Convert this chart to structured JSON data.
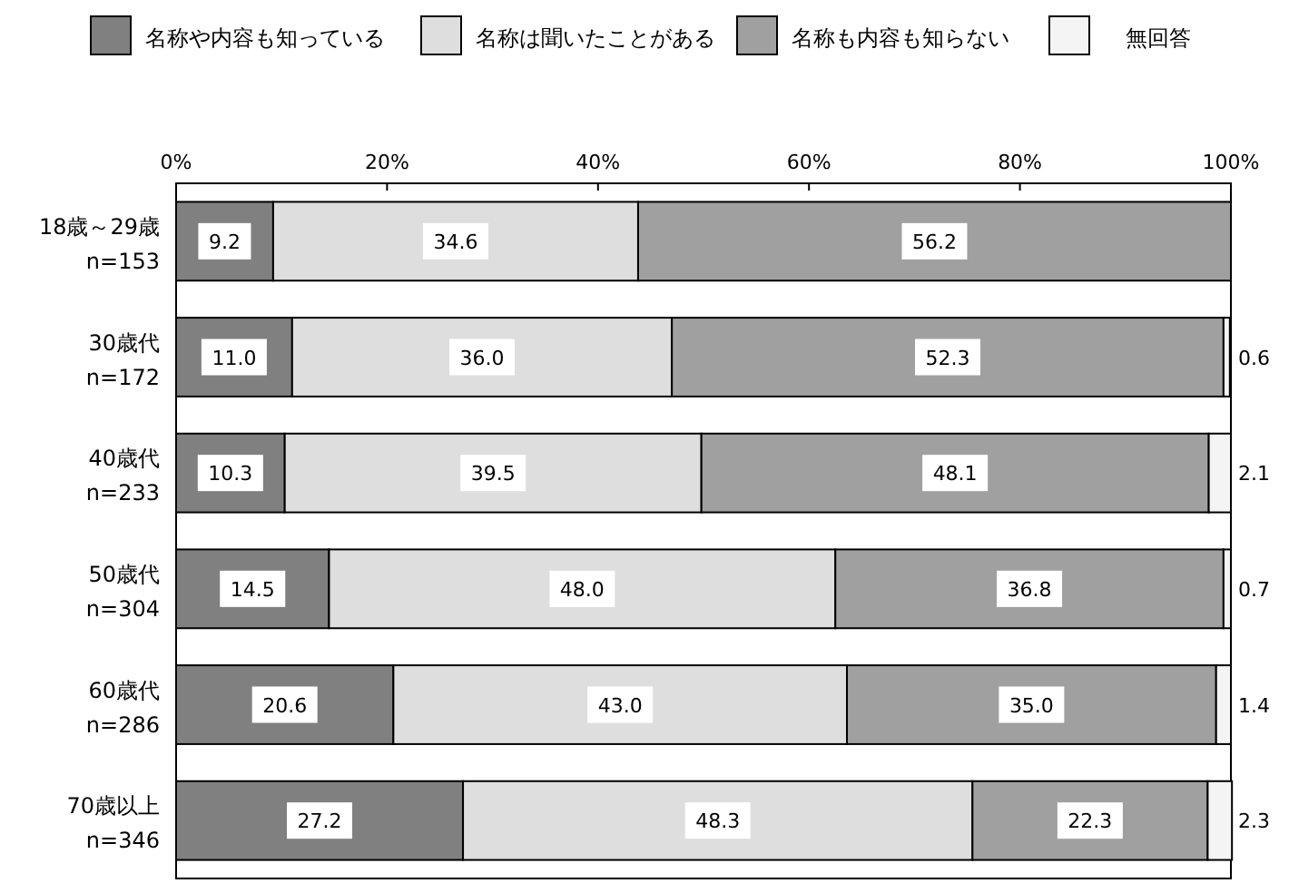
{
  "chart_data": {
    "type": "bar",
    "orientation": "horizontal",
    "stacked": true,
    "legend": "top",
    "categories": [
      "18歳～29歳\nn=153",
      "30歳代\nn=172",
      "40歳代\nn=233",
      "50歳代\nn=304",
      "60歳代\nn=286",
      "70歳以上\nn=346"
    ],
    "xlim": [
      0,
      100
    ],
    "xticks": [
      {
        "value": 0,
        "label": "0%"
      },
      {
        "value": 20,
        "label": "20%"
      },
      {
        "value": 40,
        "label": "40%"
      },
      {
        "value": 60,
        "label": "60%"
      },
      {
        "value": 80,
        "label": "80%"
      },
      {
        "value": 100,
        "label": "100%"
      }
    ],
    "series": [
      {
        "name": "名称や内容も知っている",
        "color": "#808080",
        "values": [
          9.2,
          11.0,
          10.3,
          14.5,
          20.6,
          27.2
        ],
        "value_labels": [
          "9.2",
          "11.0",
          "10.3",
          "14.5",
          "20.6",
          "27.2"
        ]
      },
      {
        "name": "名称は聞いたことがある",
        "color": "#dedede",
        "values": [
          34.6,
          36.0,
          39.5,
          48.0,
          43.0,
          48.3
        ],
        "value_labels": [
          "34.6",
          "36.0",
          "39.5",
          "48.0",
          "43.0",
          "48.3"
        ]
      },
      {
        "name": "名称も内容も知らない",
        "color": "#a0a0a0",
        "values": [
          56.2,
          52.3,
          48.1,
          36.8,
          35.0,
          22.3
        ],
        "value_labels": [
          "56.2",
          "52.3",
          "48.1",
          "36.8",
          "35.0",
          "22.3"
        ]
      },
      {
        "name": "無回答",
        "color": "#f4f4f4",
        "values": [
          null,
          0.6,
          2.1,
          0.7,
          1.4,
          2.3
        ],
        "value_labels": [
          null,
          "0.6",
          "2.1",
          "0.7",
          "1.4",
          "2.3"
        ]
      }
    ]
  }
}
